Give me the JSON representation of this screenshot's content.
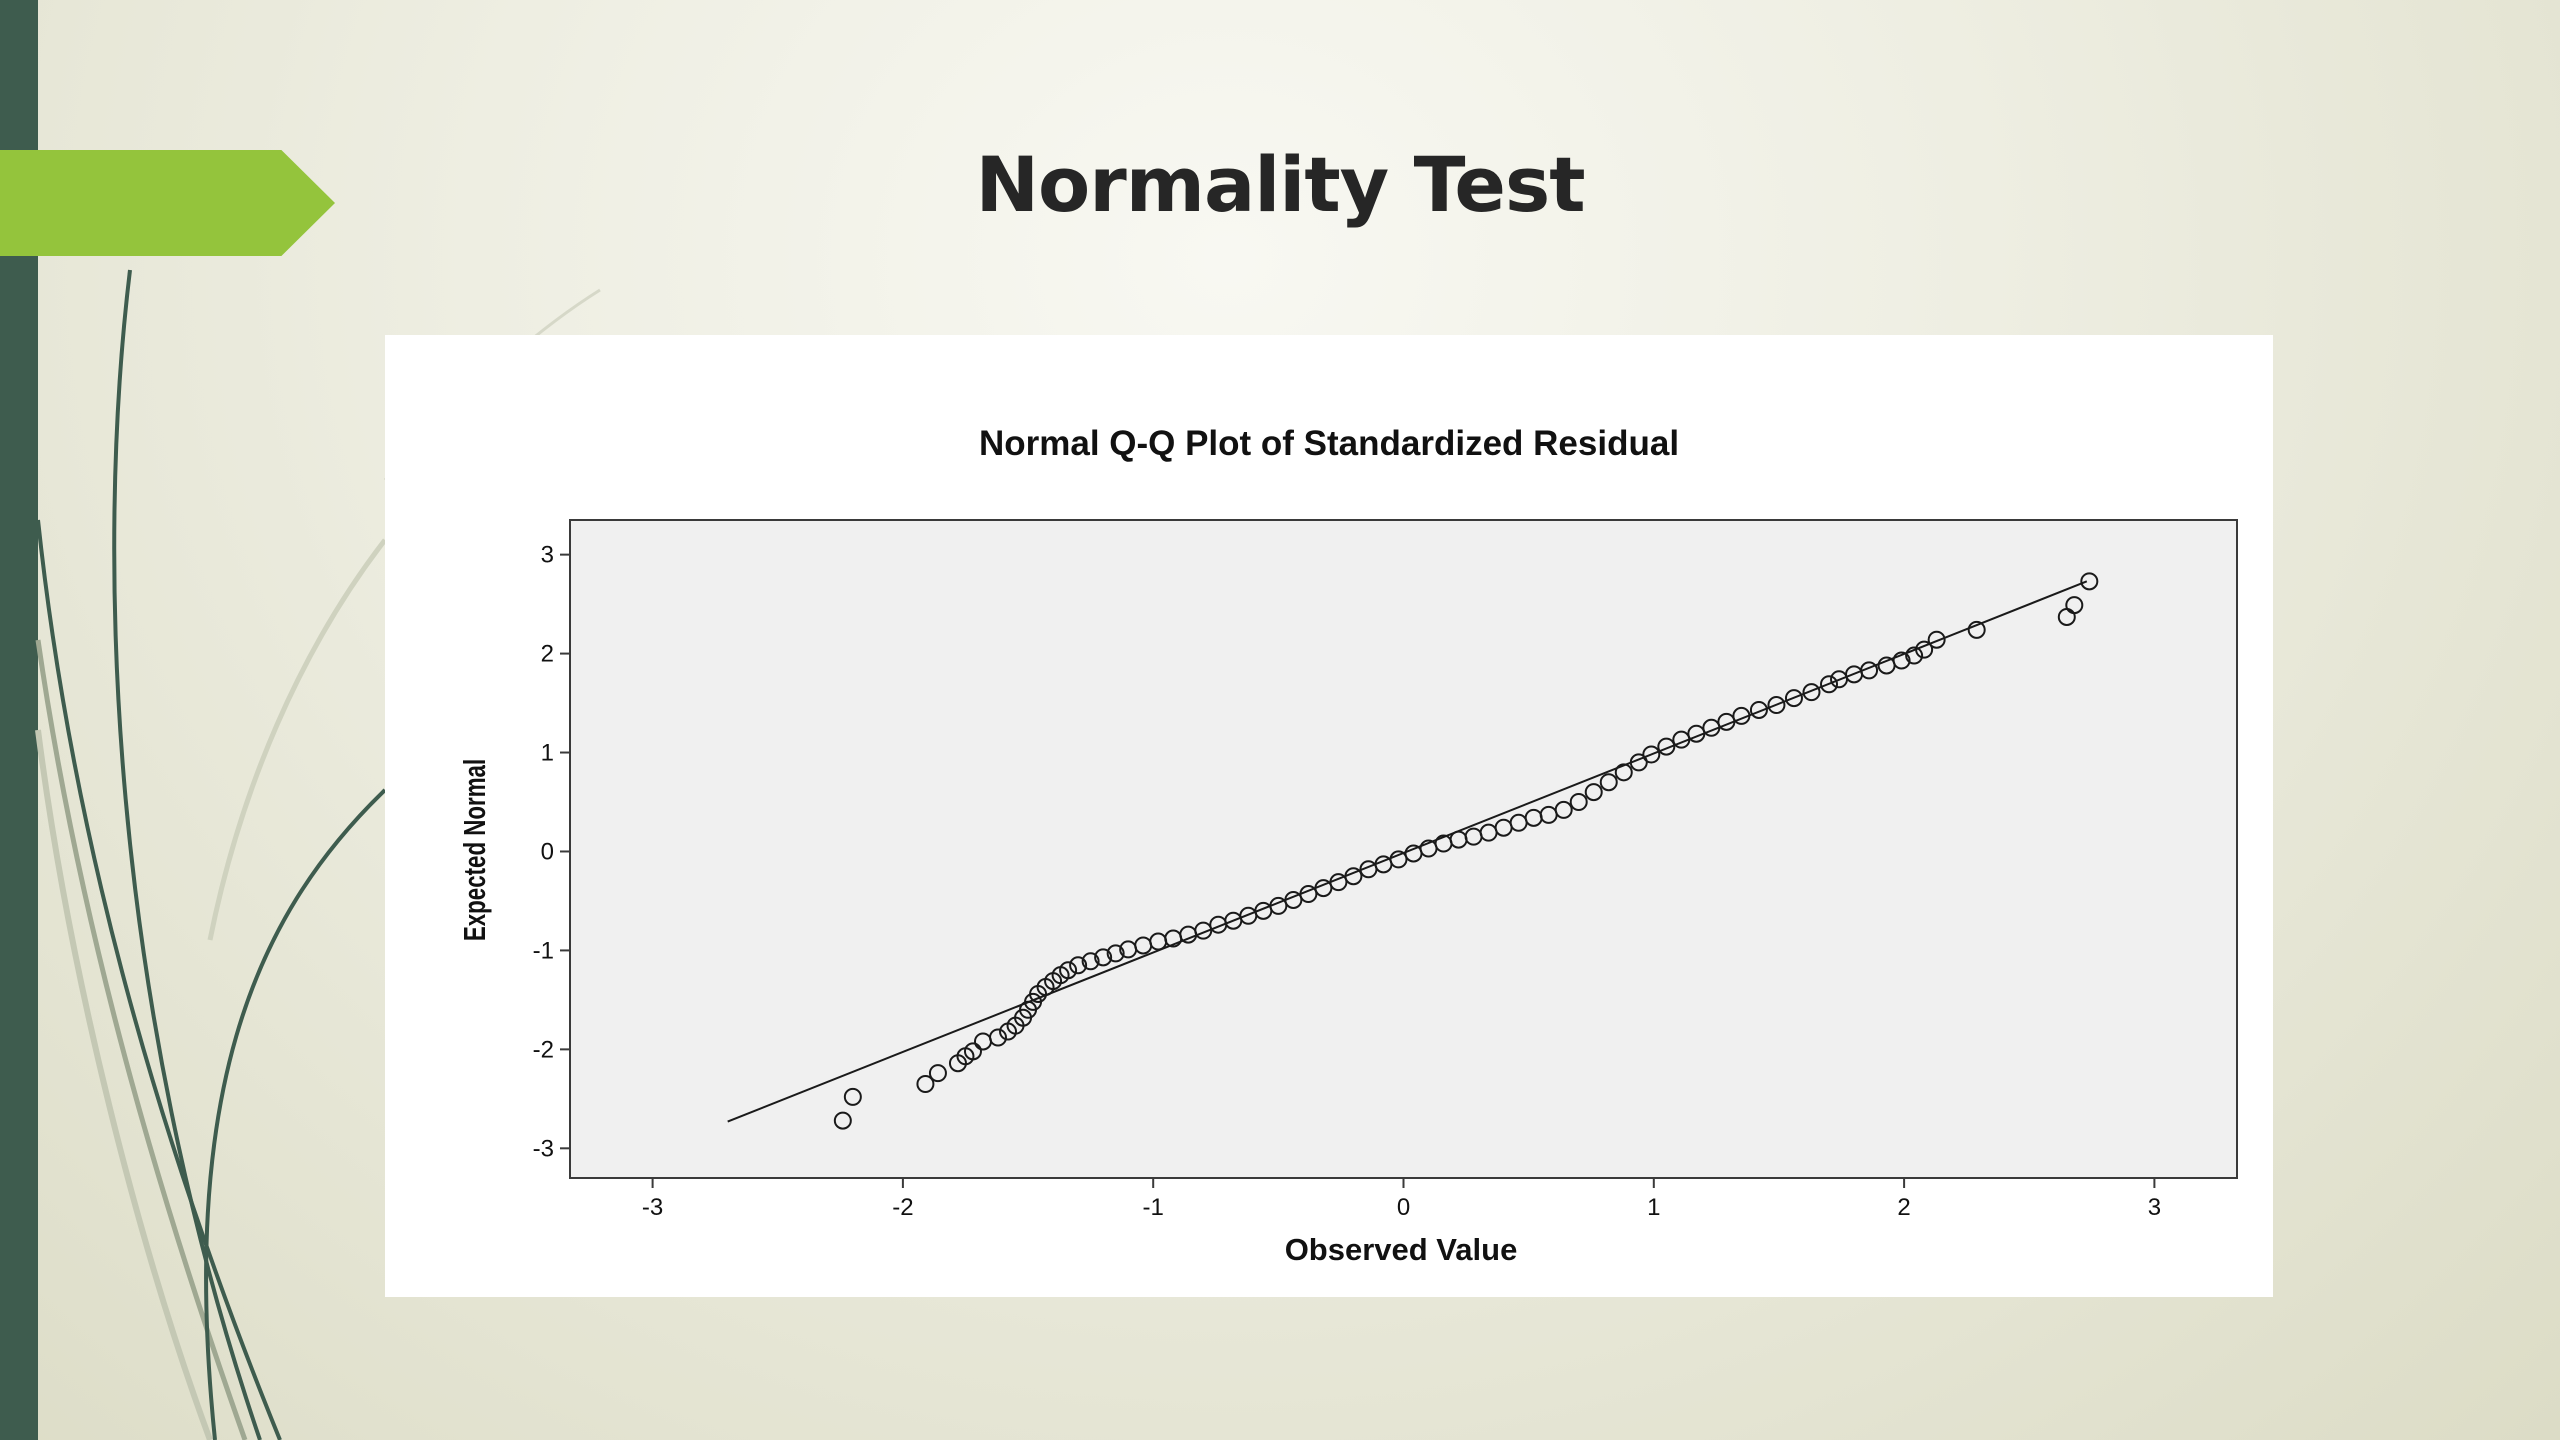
{
  "slide": {
    "title": "Normality Test"
  },
  "colors": {
    "left_bar": "#3e5c4e",
    "accent_tab": "#94c43c",
    "plot_background": "#f0f0f0",
    "marker_stroke": "#1a1a1a"
  },
  "chart_data": {
    "type": "scatter",
    "title": "Normal Q-Q Plot of Standardized Residual",
    "xlabel": "Observed Value",
    "ylabel": "Expected Normal",
    "xlim": [
      -3.33,
      3.33
    ],
    "ylim": [
      -3.3,
      3.35
    ],
    "xticks": [
      "-3",
      "-2",
      "-1",
      "0",
      "1",
      "2",
      "3"
    ],
    "yticks": [
      "3",
      "2",
      "1",
      "0",
      "-1",
      "-2",
      "-3"
    ],
    "grid": false,
    "reference_line": {
      "x": [
        -2.7,
        2.73
      ],
      "y": [
        -2.73,
        2.73
      ]
    },
    "points": [
      [
        -2.24,
        -2.72
      ],
      [
        -2.2,
        -2.48
      ],
      [
        -1.91,
        -2.35
      ],
      [
        -1.86,
        -2.24
      ],
      [
        -1.78,
        -2.14
      ],
      [
        -1.75,
        -2.07
      ],
      [
        -1.72,
        -2.02
      ],
      [
        -1.68,
        -1.92
      ],
      [
        -1.62,
        -1.88
      ],
      [
        -1.58,
        -1.82
      ],
      [
        -1.55,
        -1.76
      ],
      [
        -1.52,
        -1.68
      ],
      [
        -1.5,
        -1.6
      ],
      [
        -1.48,
        -1.52
      ],
      [
        -1.46,
        -1.44
      ],
      [
        -1.43,
        -1.37
      ],
      [
        -1.4,
        -1.31
      ],
      [
        -1.37,
        -1.25
      ],
      [
        -1.34,
        -1.2
      ],
      [
        -1.3,
        -1.15
      ],
      [
        -1.25,
        -1.11
      ],
      [
        -1.2,
        -1.07
      ],
      [
        -1.15,
        -1.03
      ],
      [
        -1.1,
        -0.99
      ],
      [
        -1.04,
        -0.95
      ],
      [
        -0.98,
        -0.91
      ],
      [
        -0.92,
        -0.88
      ],
      [
        -0.86,
        -0.84
      ],
      [
        -0.8,
        -0.8
      ],
      [
        -0.74,
        -0.74
      ],
      [
        -0.68,
        -0.7
      ],
      [
        -0.62,
        -0.65
      ],
      [
        -0.56,
        -0.6
      ],
      [
        -0.5,
        -0.55
      ],
      [
        -0.44,
        -0.49
      ],
      [
        -0.38,
        -0.43
      ],
      [
        -0.32,
        -0.37
      ],
      [
        -0.26,
        -0.31
      ],
      [
        -0.2,
        -0.25
      ],
      [
        -0.14,
        -0.18
      ],
      [
        -0.08,
        -0.13
      ],
      [
        -0.02,
        -0.08
      ],
      [
        0.04,
        -0.02
      ],
      [
        0.1,
        0.03
      ],
      [
        0.16,
        0.08
      ],
      [
        0.22,
        0.12
      ],
      [
        0.28,
        0.15
      ],
      [
        0.34,
        0.19
      ],
      [
        0.4,
        0.24
      ],
      [
        0.46,
        0.29
      ],
      [
        0.52,
        0.34
      ],
      [
        0.58,
        0.37
      ],
      [
        0.64,
        0.42
      ],
      [
        0.7,
        0.5
      ],
      [
        0.76,
        0.6
      ],
      [
        0.82,
        0.7
      ],
      [
        0.88,
        0.8
      ],
      [
        0.94,
        0.9
      ],
      [
        0.99,
        0.98
      ],
      [
        1.05,
        1.06
      ],
      [
        1.11,
        1.13
      ],
      [
        1.17,
        1.19
      ],
      [
        1.23,
        1.25
      ],
      [
        1.29,
        1.31
      ],
      [
        1.35,
        1.37
      ],
      [
        1.42,
        1.43
      ],
      [
        1.49,
        1.48
      ],
      [
        1.56,
        1.55
      ],
      [
        1.63,
        1.61
      ],
      [
        1.7,
        1.69
      ],
      [
        1.74,
        1.74
      ],
      [
        1.8,
        1.79
      ],
      [
        1.86,
        1.83
      ],
      [
        1.93,
        1.88
      ],
      [
        1.99,
        1.93
      ],
      [
        2.04,
        1.98
      ],
      [
        2.08,
        2.04
      ],
      [
        2.13,
        2.14
      ],
      [
        2.29,
        2.24
      ],
      [
        2.65,
        2.37
      ],
      [
        2.68,
        2.49
      ],
      [
        2.74,
        2.73
      ]
    ]
  }
}
